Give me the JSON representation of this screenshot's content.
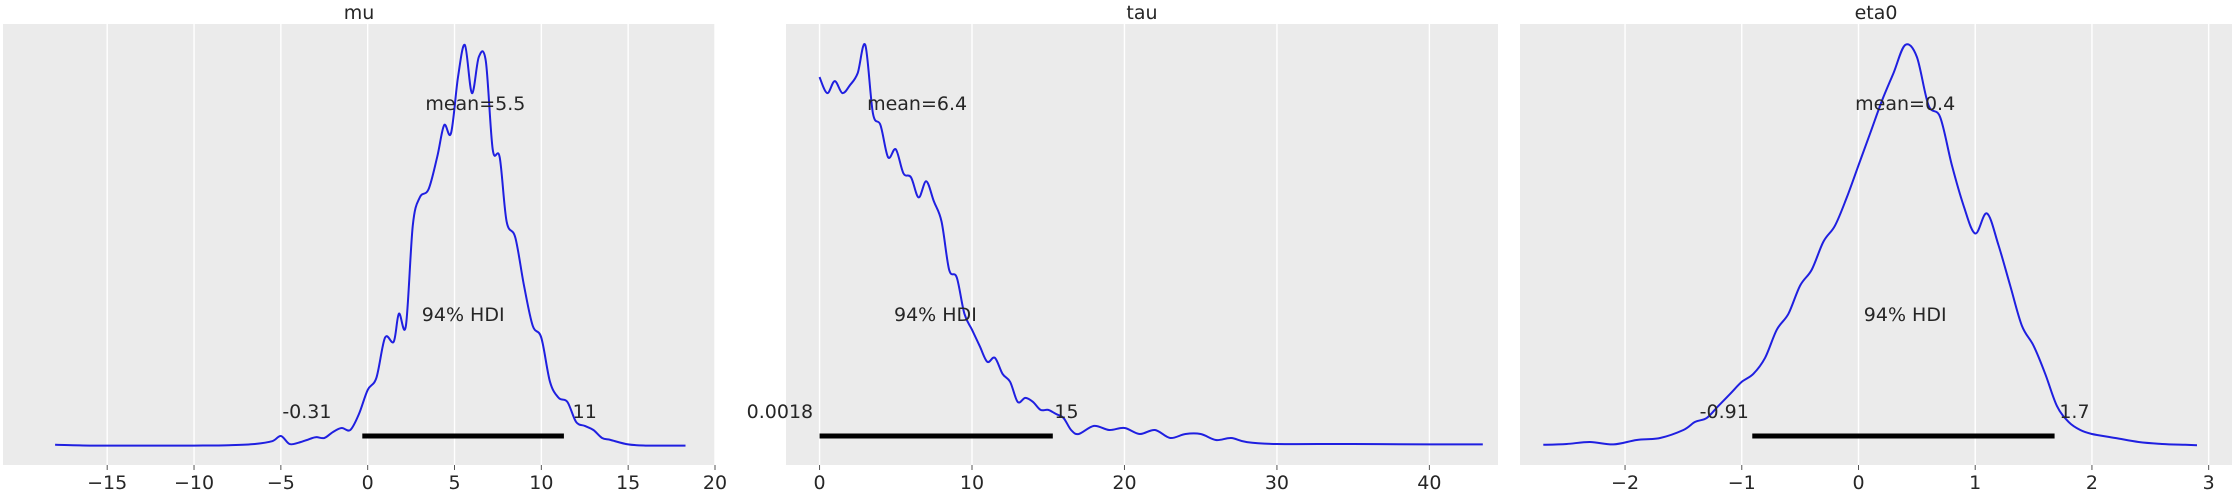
{
  "chart_data": [
    {
      "type": "line",
      "title": "mu",
      "xlabel": "",
      "ylabel": "",
      "xlim": [
        -21,
        20
      ],
      "xticks": [
        -15,
        -10,
        -5,
        0,
        5,
        10,
        15,
        20
      ],
      "xtick_labels": [
        "−15",
        "−10",
        "−5",
        "0",
        "5",
        "10",
        "15",
        "20"
      ],
      "grid": true,
      "series": [
        {
          "color": "#1f1fe0",
          "x": [
            -18,
            -16,
            -14,
            -12,
            -10,
            -8,
            -6.5,
            -5.5,
            -5,
            -4.5,
            -4,
            -3.5,
            -3,
            -2.5,
            -2,
            -1.5,
            -1,
            -0.5,
            0,
            0.5,
            1,
            1.5,
            1.8,
            2.2,
            2.6,
            3,
            3.5,
            4,
            4.4,
            4.8,
            5.2,
            5.6,
            6,
            6.4,
            6.8,
            7.2,
            7.6,
            8,
            8.5,
            9,
            9.5,
            10,
            10.5,
            11,
            11.5,
            12,
            12.5,
            13,
            13.5,
            14,
            15,
            16,
            17,
            18.3
          ],
          "y": [
            0.003,
            0.001,
            0.001,
            0.001,
            0.001,
            0.002,
            0.005,
            0.012,
            0.025,
            0.005,
            0.008,
            0.015,
            0.022,
            0.02,
            0.035,
            0.045,
            0.04,
            0.08,
            0.14,
            0.17,
            0.27,
            0.26,
            0.33,
            0.3,
            0.55,
            0.62,
            0.64,
            0.72,
            0.8,
            0.78,
            0.92,
            1.0,
            0.88,
            0.97,
            0.96,
            0.74,
            0.72,
            0.56,
            0.52,
            0.4,
            0.3,
            0.27,
            0.16,
            0.12,
            0.11,
            0.06,
            0.05,
            0.04,
            0.02,
            0.015,
            0.004,
            0.001,
            0.001,
            0.001
          ]
        }
      ],
      "annotations": {
        "mean_label": "mean=5.5",
        "hdi_label": "94% HDI",
        "hdi_low_label": "-0.31",
        "hdi_high_label": "11"
      },
      "hdi": [
        -0.31,
        11.3
      ],
      "label_anchors": {
        "mean_x": 6.2,
        "hdi_text_x": 5.5,
        "low_x": -3.5,
        "high_x": 12.5
      }
    },
    {
      "type": "line",
      "title": "tau",
      "xlabel": "",
      "ylabel": "",
      "xlim": [
        -2.2,
        44.5
      ],
      "xticks": [
        0,
        10,
        20,
        30,
        40
      ],
      "xtick_labels": [
        "0",
        "10",
        "20",
        "30",
        "40"
      ],
      "grid": true,
      "series": [
        {
          "color": "#1f1fe0",
          "x": [
            0,
            0.5,
            1,
            1.5,
            2,
            2.5,
            3,
            3.5,
            4,
            4.5,
            5,
            5.5,
            6,
            6.5,
            7,
            7.5,
            8,
            8.5,
            9,
            9.5,
            10,
            10.5,
            11,
            11.5,
            12,
            12.5,
            13,
            13.5,
            14,
            14.5,
            15,
            15.5,
            16,
            16.5,
            17,
            18,
            19,
            20,
            21,
            22,
            23,
            24,
            25,
            26,
            27,
            28,
            30,
            35,
            40,
            43.5
          ],
          "y": [
            0.92,
            0.88,
            0.91,
            0.88,
            0.9,
            0.93,
            1.0,
            0.83,
            0.8,
            0.72,
            0.74,
            0.68,
            0.67,
            0.62,
            0.66,
            0.61,
            0.56,
            0.44,
            0.42,
            0.33,
            0.29,
            0.25,
            0.21,
            0.22,
            0.18,
            0.16,
            0.11,
            0.12,
            0.11,
            0.09,
            0.09,
            0.08,
            0.07,
            0.04,
            0.03,
            0.05,
            0.04,
            0.045,
            0.03,
            0.04,
            0.02,
            0.03,
            0.03,
            0.015,
            0.02,
            0.01,
            0.005,
            0.005,
            0.004,
            0.004
          ]
        }
      ],
      "annotations": {
        "mean_label": "mean=6.4",
        "hdi_label": "94% HDI",
        "hdi_low_label": "0.0018",
        "hdi_high_label": "15"
      },
      "hdi": [
        0.0018,
        15.3
      ],
      "label_anchors": {
        "mean_x": 6.4,
        "hdi_text_x": 7.6,
        "low_x": -2.6,
        "high_x": 16.2
      }
    },
    {
      "type": "line",
      "title": "eta0",
      "xlabel": "",
      "ylabel": "",
      "xlim": [
        -2.9,
        3.2
      ],
      "xticks": [
        -2,
        -1,
        0,
        1,
        2,
        3
      ],
      "xtick_labels": [
        "−2",
        "−1",
        "0",
        "1",
        "2",
        "3"
      ],
      "grid": true,
      "series": [
        {
          "color": "#1f1fe0",
          "x": [
            -2.7,
            -2.5,
            -2.3,
            -2.1,
            -1.9,
            -1.7,
            -1.5,
            -1.4,
            -1.3,
            -1.2,
            -1.1,
            -1.0,
            -0.9,
            -0.8,
            -0.7,
            -0.6,
            -0.5,
            -0.4,
            -0.3,
            -0.2,
            -0.1,
            0,
            0.1,
            0.2,
            0.3,
            0.4,
            0.5,
            0.6,
            0.7,
            0.8,
            0.9,
            1.0,
            1.1,
            1.2,
            1.3,
            1.4,
            1.5,
            1.6,
            1.7,
            1.8,
            1.9,
            2.0,
            2.2,
            2.4,
            2.6,
            2.8,
            2.9
          ],
          "y": [
            0.003,
            0.005,
            0.01,
            0.004,
            0.015,
            0.02,
            0.04,
            0.06,
            0.07,
            0.1,
            0.13,
            0.16,
            0.18,
            0.22,
            0.29,
            0.33,
            0.4,
            0.44,
            0.51,
            0.55,
            0.62,
            0.7,
            0.78,
            0.86,
            0.93,
            1.0,
            0.97,
            0.85,
            0.82,
            0.7,
            0.6,
            0.53,
            0.58,
            0.5,
            0.4,
            0.3,
            0.25,
            0.18,
            0.1,
            0.06,
            0.04,
            0.03,
            0.02,
            0.01,
            0.005,
            0.003,
            0.002
          ]
        }
      ],
      "annotations": {
        "mean_label": "mean=0.4",
        "hdi_label": "94% HDI",
        "hdi_low_label": "-0.91",
        "hdi_high_label": "1.7"
      },
      "hdi": [
        -0.91,
        1.68
      ],
      "label_anchors": {
        "mean_x": 0.4,
        "hdi_text_x": 0.4,
        "low_x": -1.15,
        "high_x": 1.85
      }
    }
  ]
}
